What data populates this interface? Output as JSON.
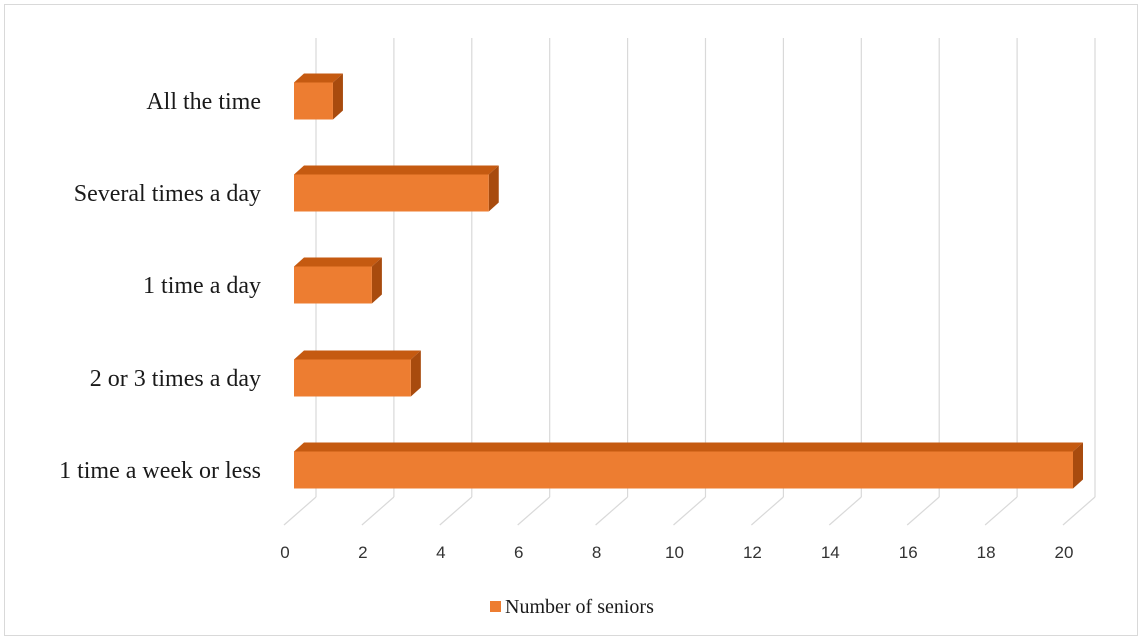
{
  "chart_data": {
    "type": "bar",
    "orientation": "horizontal",
    "style": "3d",
    "categories": [
      "1 time a week or less",
      "2 or 3 times a day",
      "1 time a day",
      "Several times a day",
      "All the time"
    ],
    "series": [
      {
        "name": "Number of seniors",
        "values": [
          20,
          3,
          2,
          5,
          1
        ]
      }
    ],
    "xlim": [
      0,
      20
    ],
    "xticks": [
      "0",
      "2",
      "4",
      "6",
      "8",
      "10",
      "12",
      "14",
      "16",
      "18",
      "20"
    ],
    "grid": true,
    "legend_position": "bottom",
    "colors": {
      "bar": "#ED7D31",
      "bar_top": "#C55A11",
      "bar_side": "#A84B0E",
      "grid": "#d9d9d9"
    }
  }
}
